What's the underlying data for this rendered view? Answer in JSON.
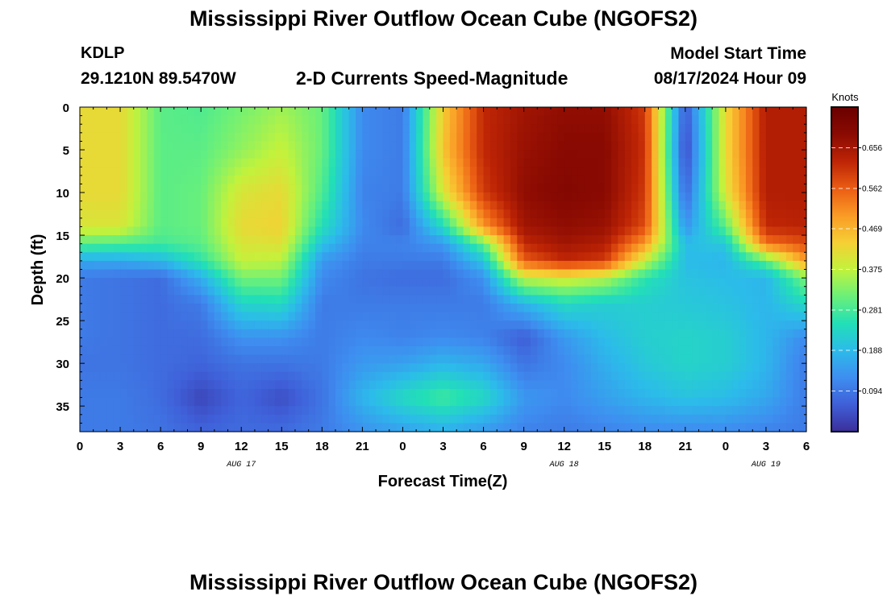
{
  "header": {
    "title": "Mississippi River Outflow Ocean Cube (NGOFS2)",
    "station": "KDLP",
    "coords": "29.1210N  89.5470W",
    "subtitle": "2-D Currents Speed-Magnitude",
    "model_start_label": "Model Start Time",
    "model_start_value": "08/17/2024 Hour 09"
  },
  "footer": {
    "title": "Mississippi River Outflow Ocean Cube (NGOFS2)"
  },
  "chart_data": {
    "type": "heatmap",
    "title": "2-D Currents Speed-Magnitude",
    "xlabel": "Forecast Time(Z)",
    "ylabel": "Depth (ft)",
    "x_tick_labels": [
      "0",
      "3",
      "6",
      "9",
      "12",
      "15",
      "18",
      "21",
      "0",
      "3",
      "6",
      "9",
      "12",
      "15",
      "18",
      "21",
      "0",
      "3",
      "6"
    ],
    "x_range_hours": [
      0,
      54
    ],
    "date_labels": [
      {
        "text": "AUG 17",
        "hour": 12
      },
      {
        "text": "AUG 18",
        "hour": 36
      },
      {
        "text": "AUG 19",
        "hour": 51
      }
    ],
    "y_ticks": [
      0,
      5,
      10,
      15,
      20,
      25,
      30,
      35
    ],
    "ylim": [
      38,
      0
    ],
    "colorbar": {
      "label": "Knots",
      "ticks": [
        "0.094",
        "0.188",
        "0.281",
        "0.375",
        "0.469",
        "0.562",
        "0.656"
      ],
      "range": [
        0,
        0.75
      ],
      "colors": [
        "#3b2f9a",
        "#3f5fd8",
        "#3e8ef0",
        "#2cbbea",
        "#22dfb7",
        "#6af07a",
        "#c2f23c",
        "#f6cf34",
        "#fa9a26",
        "#ea5c13",
        "#bd2405",
        "#8a0a02",
        "#6a0000"
      ]
    },
    "z_grid": {
      "units": "knots",
      "x_hours": [
        0,
        3,
        6,
        9,
        12,
        15,
        18,
        21,
        24,
        27,
        30,
        33,
        36,
        39,
        42,
        45,
        48,
        51,
        54
      ],
      "y_depth_ft": [
        0,
        5,
        10,
        14,
        16,
        18,
        20,
        23,
        27,
        30,
        34,
        38
      ],
      "values": [
        [
          0.42,
          0.42,
          0.3,
          0.29,
          0.32,
          0.35,
          0.31,
          0.12,
          0.1,
          0.44,
          0.62,
          0.66,
          0.68,
          0.68,
          0.6,
          0.05,
          0.42,
          0.64,
          0.64
        ],
        [
          0.42,
          0.42,
          0.3,
          0.3,
          0.34,
          0.38,
          0.31,
          0.12,
          0.1,
          0.45,
          0.62,
          0.67,
          0.69,
          0.69,
          0.61,
          0.03,
          0.42,
          0.64,
          0.64
        ],
        [
          0.42,
          0.42,
          0.3,
          0.31,
          0.4,
          0.42,
          0.29,
          0.11,
          0.1,
          0.4,
          0.6,
          0.68,
          0.7,
          0.69,
          0.6,
          0.07,
          0.4,
          0.64,
          0.64
        ],
        [
          0.4,
          0.4,
          0.3,
          0.31,
          0.42,
          0.43,
          0.25,
          0.12,
          0.08,
          0.24,
          0.5,
          0.66,
          0.68,
          0.67,
          0.58,
          0.13,
          0.3,
          0.62,
          0.63
        ],
        [
          0.3,
          0.29,
          0.28,
          0.3,
          0.4,
          0.41,
          0.2,
          0.11,
          0.11,
          0.14,
          0.31,
          0.62,
          0.66,
          0.64,
          0.5,
          0.19,
          0.21,
          0.54,
          0.58
        ],
        [
          0.16,
          0.16,
          0.18,
          0.26,
          0.38,
          0.37,
          0.14,
          0.1,
          0.1,
          0.1,
          0.2,
          0.56,
          0.62,
          0.6,
          0.38,
          0.19,
          0.18,
          0.3,
          0.5
        ],
        [
          0.1,
          0.09,
          0.08,
          0.17,
          0.32,
          0.32,
          0.12,
          0.09,
          0.08,
          0.08,
          0.13,
          0.38,
          0.4,
          0.37,
          0.26,
          0.2,
          0.19,
          0.18,
          0.33
        ],
        [
          0.1,
          0.09,
          0.08,
          0.1,
          0.23,
          0.24,
          0.1,
          0.1,
          0.1,
          0.1,
          0.1,
          0.18,
          0.24,
          0.22,
          0.22,
          0.21,
          0.2,
          0.18,
          0.24
        ],
        [
          0.1,
          0.09,
          0.08,
          0.08,
          0.13,
          0.13,
          0.1,
          0.12,
          0.11,
          0.12,
          0.11,
          0.06,
          0.14,
          0.19,
          0.22,
          0.23,
          0.22,
          0.18,
          0.12
        ],
        [
          0.09,
          0.09,
          0.08,
          0.07,
          0.09,
          0.09,
          0.1,
          0.14,
          0.15,
          0.18,
          0.16,
          0.09,
          0.12,
          0.17,
          0.21,
          0.23,
          0.22,
          0.18,
          0.1
        ],
        [
          0.1,
          0.1,
          0.08,
          0.03,
          0.07,
          0.04,
          0.09,
          0.18,
          0.24,
          0.28,
          0.24,
          0.14,
          0.12,
          0.15,
          0.18,
          0.2,
          0.19,
          0.16,
          0.1
        ],
        [
          0.1,
          0.1,
          0.09,
          0.07,
          0.08,
          0.08,
          0.1,
          0.13,
          0.15,
          0.17,
          0.14,
          0.11,
          0.1,
          0.11,
          0.12,
          0.12,
          0.12,
          0.11,
          0.1
        ]
      ]
    }
  }
}
